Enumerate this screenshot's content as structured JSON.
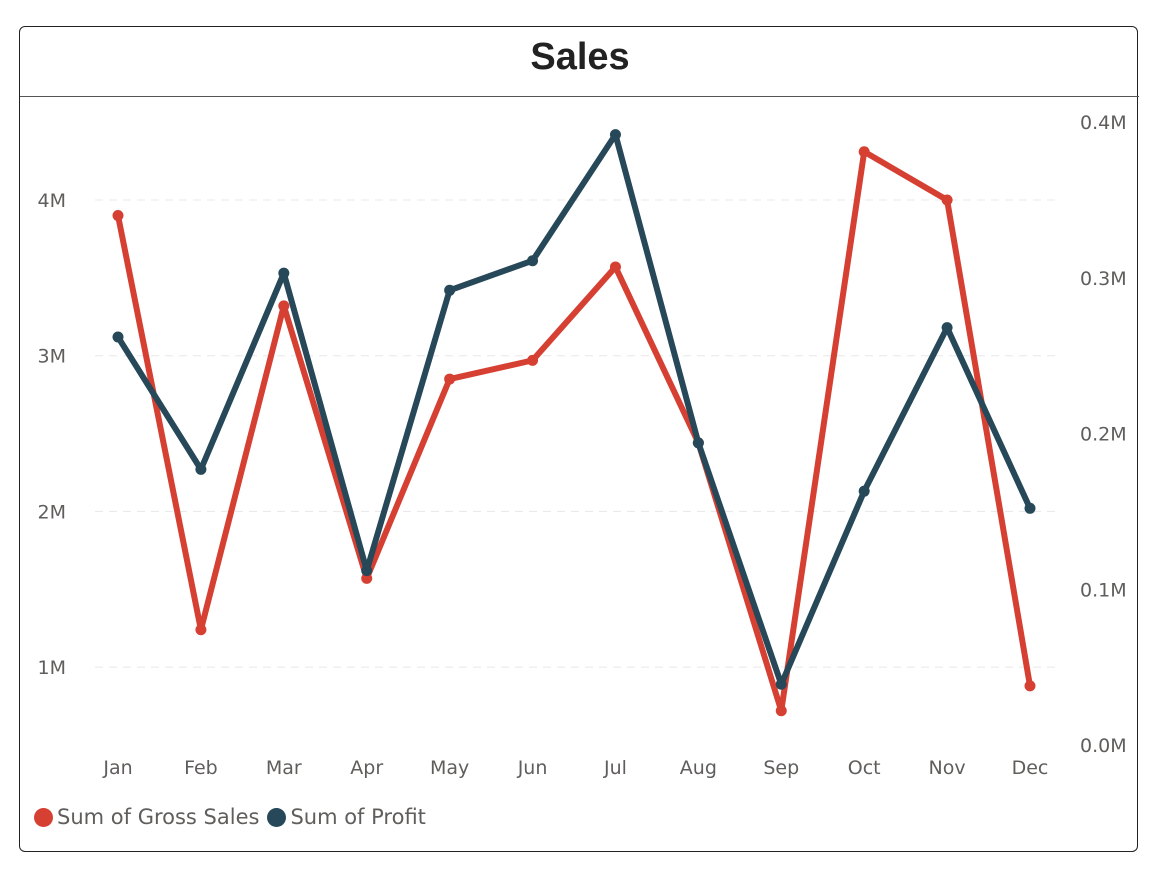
{
  "chart_data": {
    "type": "line",
    "title": "Sales",
    "categories": [
      "Jan",
      "Feb",
      "Mar",
      "Apr",
      "May",
      "Jun",
      "Jul",
      "Aug",
      "Sep",
      "Oct",
      "Nov",
      "Dec"
    ],
    "series": [
      {
        "name": "Sum of Gross Sales",
        "axis": "left",
        "color": "#d64033",
        "values": [
          3900000,
          1240000,
          3320000,
          1570000,
          2850000,
          2970000,
          3570000,
          2440000,
          720000,
          4310000,
          4000000,
          880000
        ]
      },
      {
        "name": "Sum of Profit",
        "axis": "right",
        "color": "#264858",
        "values": [
          262000,
          177000,
          303000,
          112000,
          292000,
          311000,
          392000,
          194000,
          39000,
          163000,
          268000,
          152000
        ]
      }
    ],
    "y_left": {
      "ticks": [
        1000000,
        2000000,
        3000000,
        4000000
      ],
      "tick_labels": [
        "1M",
        "2M",
        "3M",
        "4M"
      ],
      "range": [
        500000,
        4610000
      ]
    },
    "y_right": {
      "ticks": [
        0,
        100000,
        200000,
        300000,
        400000
      ],
      "tick_labels": [
        "0.0M",
        "0.1M",
        "0.2M",
        "0.3M",
        "0.4M"
      ],
      "range": [
        0,
        411000
      ]
    },
    "grid": true,
    "legend": "bottom-left"
  }
}
